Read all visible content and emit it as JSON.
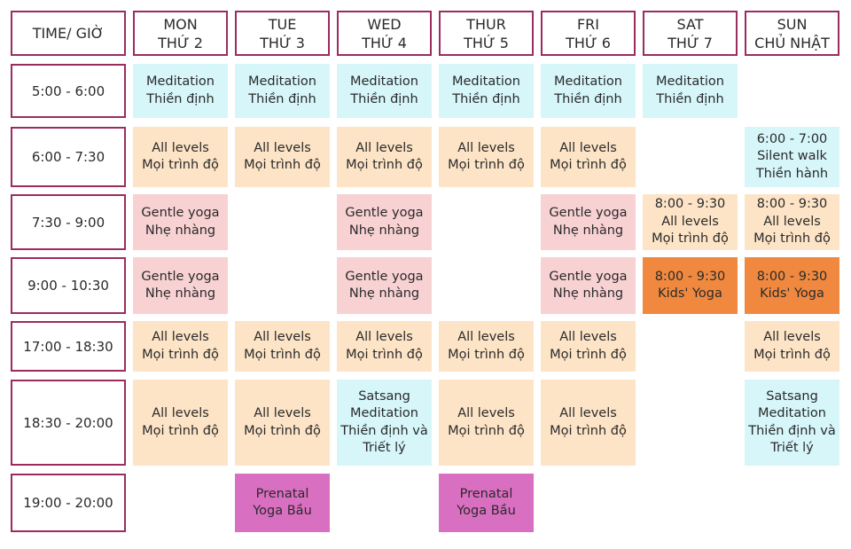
{
  "header": {
    "time_label": "TIME/ GIỜ",
    "days": [
      {
        "en": "MON",
        "vi": "THỨ 2"
      },
      {
        "en": "TUE",
        "vi": "THỨ 3"
      },
      {
        "en": "WED",
        "vi": "THỨ 4"
      },
      {
        "en": "THUR",
        "vi": "THỨ 5"
      },
      {
        "en": "FRI",
        "vi": "THỨ 6"
      },
      {
        "en": "SAT",
        "vi": "THỨ 7"
      },
      {
        "en": "SUN",
        "vi": "CHỦ NHẬT"
      }
    ]
  },
  "rows": [
    {
      "time": "5:00 - 6:00",
      "cells": [
        {
          "lines": [
            "Meditation",
            "Thiền định"
          ],
          "color": "#d6f6fa"
        },
        {
          "lines": [
            "Meditation",
            "Thiền định"
          ],
          "color": "#d6f6fa"
        },
        {
          "lines": [
            "Meditation",
            "Thiền định"
          ],
          "color": "#d6f6fa"
        },
        {
          "lines": [
            "Meditation",
            "Thiền định"
          ],
          "color": "#d6f6fa"
        },
        {
          "lines": [
            "Meditation",
            "Thiền định"
          ],
          "color": "#d6f6fa"
        },
        {
          "lines": [
            "Meditation",
            "Thiền định"
          ],
          "color": "#d6f6fa"
        },
        null
      ]
    },
    {
      "time": "6:00 - 7:30",
      "cells": [
        {
          "lines": [
            "All levels",
            "Mọi trình độ"
          ],
          "color": "#fde4c6"
        },
        {
          "lines": [
            "All levels",
            "Mọi trình độ"
          ],
          "color": "#fde4c6"
        },
        {
          "lines": [
            "All levels",
            "Mọi trình độ"
          ],
          "color": "#fde4c6"
        },
        {
          "lines": [
            "All levels",
            "Mọi trình độ"
          ],
          "color": "#fde4c6"
        },
        {
          "lines": [
            "All levels",
            "Mọi trình độ"
          ],
          "color": "#fde4c6"
        },
        null,
        {
          "lines": [
            "6:00 - 7:00",
            "Silent walk",
            "Thiền hành"
          ],
          "color": "#d6f6fa"
        }
      ]
    },
    {
      "time": "7:30 - 9:00",
      "cells": [
        {
          "lines": [
            "Gentle yoga",
            "Nhẹ nhàng"
          ],
          "color": "#f8d1d3"
        },
        null,
        {
          "lines": [
            "Gentle yoga",
            "Nhẹ nhàng"
          ],
          "color": "#f8d1d3"
        },
        null,
        {
          "lines": [
            "Gentle yoga",
            "Nhẹ nhàng"
          ],
          "color": "#f8d1d3"
        },
        {
          "lines": [
            "8:00 - 9:30",
            "All levels",
            "Mọi trình độ"
          ],
          "color": "#fde4c6"
        },
        {
          "lines": [
            "8:00 - 9:30",
            "All levels",
            "Mọi trình độ"
          ],
          "color": "#fde4c6"
        }
      ]
    },
    {
      "time": "9:00 - 10:30",
      "cells": [
        {
          "lines": [
            "Gentle yoga",
            "Nhẹ nhàng"
          ],
          "color": "#f8d1d3"
        },
        null,
        {
          "lines": [
            "Gentle yoga",
            "Nhẹ nhàng"
          ],
          "color": "#f8d1d3"
        },
        null,
        {
          "lines": [
            "Gentle yoga",
            "Nhẹ nhàng"
          ],
          "color": "#f8d1d3"
        },
        {
          "lines": [
            "8:00 - 9:30",
            "Kids' Yoga"
          ],
          "color": "#f0893f"
        },
        {
          "lines": [
            "8:00 - 9:30",
            "Kids' Yoga"
          ],
          "color": "#f0893f"
        }
      ]
    },
    {
      "time": "17:00 - 18:30",
      "cells": [
        {
          "lines": [
            "All levels",
            "Mọi trình độ"
          ],
          "color": "#fde4c6"
        },
        {
          "lines": [
            "All levels",
            "Mọi trình độ"
          ],
          "color": "#fde4c6"
        },
        {
          "lines": [
            "All levels",
            "Mọi trình độ"
          ],
          "color": "#fde4c6"
        },
        {
          "lines": [
            "All levels",
            "Mọi trình độ"
          ],
          "color": "#fde4c6"
        },
        {
          "lines": [
            "All levels",
            "Mọi trình độ"
          ],
          "color": "#fde4c6"
        },
        null,
        {
          "lines": [
            "All levels",
            "Mọi trình độ"
          ],
          "color": "#fde4c6"
        }
      ]
    },
    {
      "time": "18:30 - 20:00",
      "cells": [
        {
          "lines": [
            "All levels",
            "Mọi trình độ"
          ],
          "color": "#fde4c6"
        },
        {
          "lines": [
            "All levels",
            "Mọi trình độ"
          ],
          "color": "#fde4c6"
        },
        {
          "lines": [
            "Satsang",
            "Meditation",
            "Thiền định và",
            "Triết lý"
          ],
          "color": "#d6f6fa"
        },
        {
          "lines": [
            "All levels",
            "Mọi trình độ"
          ],
          "color": "#fde4c6"
        },
        {
          "lines": [
            "All levels",
            "Mọi trình độ"
          ],
          "color": "#fde4c6"
        },
        null,
        {
          "lines": [
            "Satsang",
            "Meditation",
            "Thiền định và",
            "Triết lý"
          ],
          "color": "#d6f6fa"
        }
      ]
    },
    {
      "time": "19:00 - 20:00",
      "cells": [
        null,
        {
          "lines": [
            "Prenatal",
            "Yoga Bầu"
          ],
          "color": "#d96fc1"
        },
        null,
        {
          "lines": [
            "Prenatal",
            "Yoga Bầu"
          ],
          "color": "#d96fc1"
        },
        null,
        null,
        null
      ]
    }
  ]
}
